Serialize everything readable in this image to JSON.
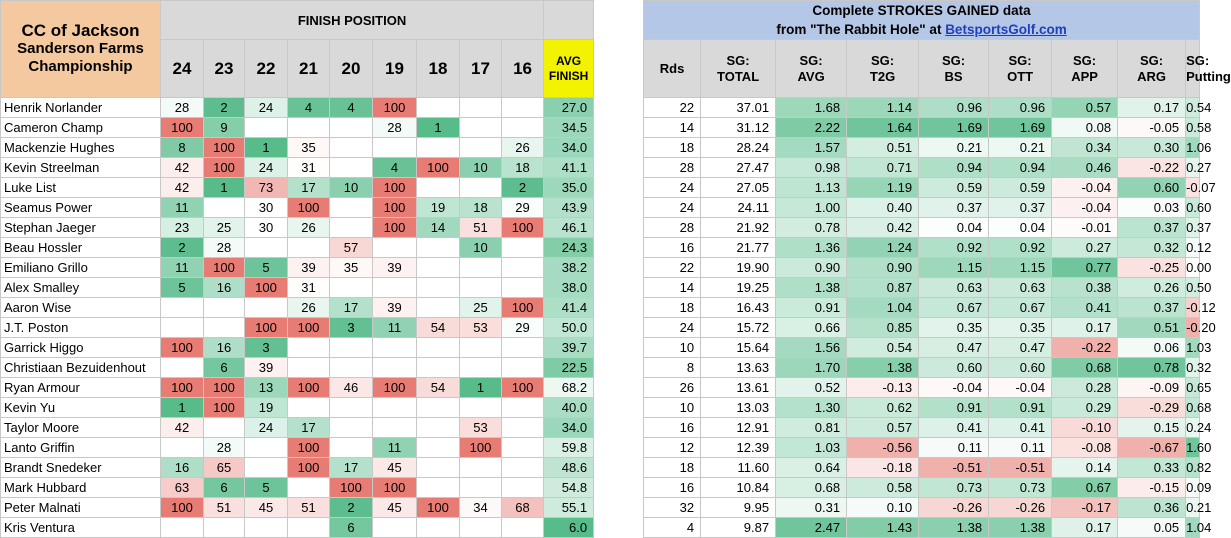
{
  "title": {
    "line1": "CC of Jackson",
    "line2": "Sanderson Farms",
    "line3": "Championship"
  },
  "finish_header": "FINISH POSITION",
  "sg_header": {
    "line1": "Complete STROKES GAINED data",
    "line2_prefix": "from \"The Rabbit Hole\" at ",
    "link": "BetsportsGolf.com"
  },
  "positions": [
    "24",
    "23",
    "22",
    "21",
    "20",
    "19",
    "18",
    "17",
    "16"
  ],
  "avg_header": {
    "line1": "AVG",
    "line2": "FINISH"
  },
  "rds_header": "Rds",
  "sg_columns": [
    [
      "SG:",
      "TOTAL"
    ],
    [
      "SG:",
      "AVG"
    ],
    [
      "SG:",
      "T2G"
    ],
    [
      "SG:",
      "BS"
    ],
    [
      "SG:",
      "OTT"
    ],
    [
      "SG:",
      "APP"
    ],
    [
      "SG:",
      "ARG"
    ],
    [
      "SG:",
      "Putting"
    ]
  ],
  "colors": {
    "good": "#57bb8a",
    "mid": "#ffffff",
    "bad": "#e67c73"
  },
  "players": [
    {
      "name": "Henrik Norlander",
      "fin": [
        "28",
        "2",
        "24",
        "4",
        "4",
        "100",
        "",
        "",
        ""
      ],
      "avg": "27.0",
      "rds": "22",
      "sg": [
        "37.01",
        "1.68",
        "1.14",
        "0.96",
        "0.96",
        "0.57",
        "0.17",
        "0.54"
      ]
    },
    {
      "name": "Cameron Champ",
      "fin": [
        "100",
        "9",
        "",
        "",
        "",
        "28",
        "1",
        "",
        ""
      ],
      "avg": "34.5",
      "rds": "14",
      "sg": [
        "31.12",
        "2.22",
        "1.64",
        "1.69",
        "1.69",
        "0.08",
        "-0.05",
        "0.58"
      ]
    },
    {
      "name": "Mackenzie Hughes",
      "fin": [
        "8",
        "100",
        "1",
        "35",
        "",
        "",
        "",
        "",
        "26"
      ],
      "avg": "34.0",
      "rds": "18",
      "sg": [
        "28.24",
        "1.57",
        "0.51",
        "0.21",
        "0.21",
        "0.34",
        "0.30",
        "1.06"
      ]
    },
    {
      "name": "Kevin Streelman",
      "fin": [
        "42",
        "100",
        "24",
        "31",
        "",
        "4",
        "100",
        "10",
        "18"
      ],
      "avg": "41.1",
      "rds": "28",
      "sg": [
        "27.47",
        "0.98",
        "0.71",
        "0.94",
        "0.94",
        "0.46",
        "-0.22",
        "0.27"
      ]
    },
    {
      "name": "Luke List",
      "fin": [
        "42",
        "1",
        "73",
        "17",
        "10",
        "100",
        "",
        "",
        "2"
      ],
      "avg": "35.0",
      "rds": "24",
      "sg": [
        "27.05",
        "1.13",
        "1.19",
        "0.59",
        "0.59",
        "-0.04",
        "0.60",
        "-0.07"
      ]
    },
    {
      "name": "Seamus Power",
      "fin": [
        "11",
        "",
        "30",
        "100",
        "",
        "100",
        "19",
        "18",
        "29"
      ],
      "avg": "43.9",
      "rds": "24",
      "sg": [
        "24.11",
        "1.00",
        "0.40",
        "0.37",
        "0.37",
        "-0.04",
        "0.03",
        "0.60"
      ]
    },
    {
      "name": "Stephan Jaeger",
      "fin": [
        "23",
        "25",
        "30",
        "26",
        "",
        "100",
        "14",
        "51",
        "100"
      ],
      "avg": "46.1",
      "rds": "28",
      "sg": [
        "21.92",
        "0.78",
        "0.42",
        "0.04",
        "0.04",
        "-0.01",
        "0.37",
        "0.37"
      ]
    },
    {
      "name": "Beau Hossler",
      "fin": [
        "2",
        "28",
        "",
        "",
        "57",
        "",
        "",
        "10",
        ""
      ],
      "avg": "24.3",
      "rds": "16",
      "sg": [
        "21.77",
        "1.36",
        "1.24",
        "0.92",
        "0.92",
        "0.27",
        "0.32",
        "0.12"
      ]
    },
    {
      "name": "Emiliano Grillo",
      "fin": [
        "11",
        "100",
        "5",
        "39",
        "35",
        "39",
        "",
        "",
        ""
      ],
      "avg": "38.2",
      "rds": "22",
      "sg": [
        "19.90",
        "0.90",
        "0.90",
        "1.15",
        "1.15",
        "0.77",
        "-0.25",
        "0.00"
      ]
    },
    {
      "name": "Alex Smalley",
      "fin": [
        "5",
        "16",
        "100",
        "31",
        "",
        "",
        "",
        "",
        ""
      ],
      "avg": "38.0",
      "rds": "14",
      "sg": [
        "19.25",
        "1.38",
        "0.87",
        "0.63",
        "0.63",
        "0.38",
        "0.26",
        "0.50"
      ]
    },
    {
      "name": "Aaron Wise",
      "fin": [
        "",
        "",
        "",
        "26",
        "17",
        "39",
        "",
        "25",
        "100"
      ],
      "avg": "41.4",
      "rds": "18",
      "sg": [
        "16.43",
        "0.91",
        "1.04",
        "0.67",
        "0.67",
        "0.41",
        "0.37",
        "-0.12"
      ]
    },
    {
      "name": "J.T. Poston",
      "fin": [
        "",
        "",
        "100",
        "100",
        "3",
        "11",
        "54",
        "53",
        "29"
      ],
      "avg": "50.0",
      "rds": "24",
      "sg": [
        "15.72",
        "0.66",
        "0.85",
        "0.35",
        "0.35",
        "0.17",
        "0.51",
        "-0.20"
      ]
    },
    {
      "name": "Garrick Higgo",
      "fin": [
        "100",
        "16",
        "3",
        "",
        "",
        "",
        "",
        "",
        ""
      ],
      "avg": "39.7",
      "rds": "10",
      "sg": [
        "15.64",
        "1.56",
        "0.54",
        "0.47",
        "0.47",
        "-0.22",
        "0.06",
        "1.03"
      ]
    },
    {
      "name": "Christiaan Bezuidenhout",
      "fin": [
        "",
        "6",
        "39",
        "",
        "",
        "",
        "",
        "",
        ""
      ],
      "avg": "22.5",
      "rds": "8",
      "sg": [
        "13.63",
        "1.70",
        "1.38",
        "0.60",
        "0.60",
        "0.68",
        "0.78",
        "0.32"
      ]
    },
    {
      "name": "Ryan Armour",
      "fin": [
        "100",
        "100",
        "13",
        "100",
        "46",
        "100",
        "54",
        "1",
        "100"
      ],
      "avg": "68.2",
      "rds": "26",
      "sg": [
        "13.61",
        "0.52",
        "-0.13",
        "-0.04",
        "-0.04",
        "0.28",
        "-0.09",
        "0.65"
      ]
    },
    {
      "name": "Kevin Yu",
      "fin": [
        "1",
        "100",
        "19",
        "",
        "",
        "",
        "",
        "",
        ""
      ],
      "avg": "40.0",
      "rds": "10",
      "sg": [
        "13.03",
        "1.30",
        "0.62",
        "0.91",
        "0.91",
        "0.29",
        "-0.29",
        "0.68"
      ]
    },
    {
      "name": "Taylor Moore",
      "fin": [
        "42",
        "",
        "24",
        "17",
        "",
        "",
        "",
        "53",
        ""
      ],
      "avg": "34.0",
      "rds": "16",
      "sg": [
        "12.91",
        "0.81",
        "0.57",
        "0.41",
        "0.41",
        "-0.10",
        "0.15",
        "0.24"
      ]
    },
    {
      "name": "Lanto Griffin",
      "fin": [
        "",
        "28",
        "",
        "100",
        "",
        "11",
        "",
        "100",
        ""
      ],
      "avg": "59.8",
      "rds": "12",
      "sg": [
        "12.39",
        "1.03",
        "-0.56",
        "0.11",
        "0.11",
        "-0.08",
        "-0.67",
        "1.60"
      ]
    },
    {
      "name": "Brandt Snedeker",
      "fin": [
        "16",
        "65",
        "",
        "100",
        "17",
        "45",
        "",
        "",
        ""
      ],
      "avg": "48.6",
      "rds": "18",
      "sg": [
        "11.60",
        "0.64",
        "-0.18",
        "-0.51",
        "-0.51",
        "0.14",
        "0.33",
        "0.82"
      ]
    },
    {
      "name": "Mark Hubbard",
      "fin": [
        "63",
        "6",
        "5",
        "",
        "100",
        "100",
        "",
        "",
        ""
      ],
      "avg": "54.8",
      "rds": "16",
      "sg": [
        "10.84",
        "0.68",
        "0.58",
        "0.73",
        "0.73",
        "0.67",
        "-0.15",
        "0.09"
      ]
    },
    {
      "name": "Peter Malnati",
      "fin": [
        "100",
        "51",
        "45",
        "51",
        "2",
        "45",
        "100",
        "34",
        "68"
      ],
      "avg": "55.1",
      "rds": "32",
      "sg": [
        "9.95",
        "0.31",
        "0.10",
        "-0.26",
        "-0.26",
        "-0.17",
        "0.36",
        "0.21"
      ]
    },
    {
      "name": "Kris Ventura",
      "fin": [
        "",
        "",
        "",
        "",
        "6",
        "",
        "",
        "",
        ""
      ],
      "avg": "6.0",
      "rds": "4",
      "sg": [
        "9.87",
        "2.47",
        "1.43",
        "1.38",
        "1.38",
        "0.17",
        "0.05",
        "1.04"
      ]
    }
  ]
}
